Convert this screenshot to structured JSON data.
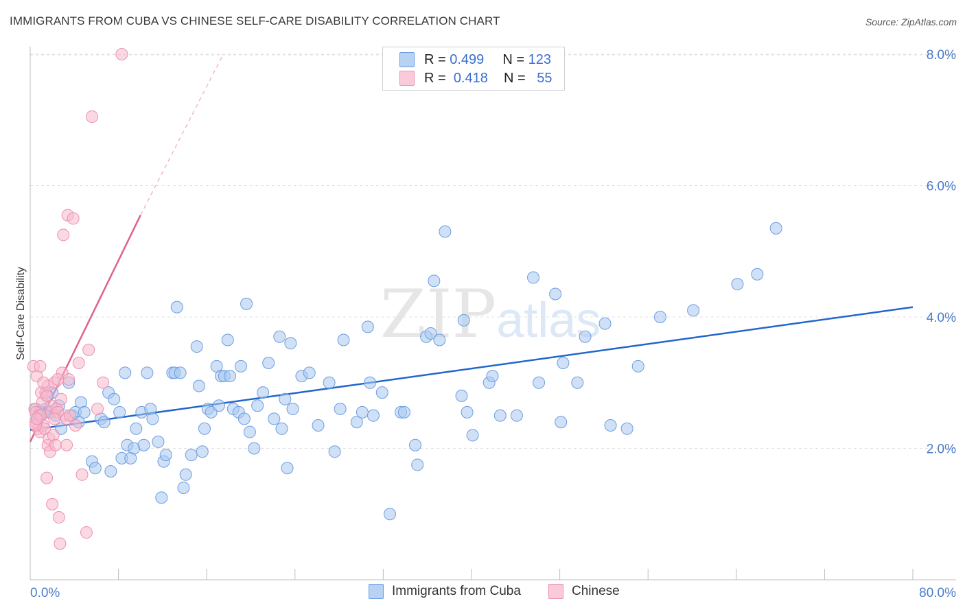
{
  "title": "IMMIGRANTS FROM CUBA VS CHINESE SELF-CARE DISABILITY CORRELATION CHART",
  "source": "Source: ZipAtlas.com",
  "watermark": {
    "zip": "ZIP",
    "atlas": "atlas"
  },
  "legend": {
    "rows": [
      {
        "r_label": "R =",
        "r_value": "0.499",
        "n_label": "N =",
        "n_value": "123"
      },
      {
        "r_label": "R =",
        "r_value": "0.418",
        "n_label": "N =",
        "n_value": "55"
      }
    ]
  },
  "colors": {
    "cuba_fill": "#a9c8f0",
    "cuba_stroke": "#6a9ee0",
    "cuba_line": "#2266cc",
    "chinese_fill": "#f7b9cc",
    "chinese_stroke": "#ee8fb0",
    "chinese_line": "#e0608e",
    "grid": "#e0e0e0",
    "tick_text": "#4a7cc9"
  },
  "chart_data": {
    "type": "scatter",
    "title": "IMMIGRANTS FROM CUBA VS CHINESE SELF-CARE DISABILITY CORRELATION CHART",
    "xlabel": "",
    "ylabel": "Self-Care Disability",
    "xlim": [
      0,
      80
    ],
    "ylim": [
      0,
      8.3
    ],
    "x_tick_labels": [
      "0.0%",
      "80.0%"
    ],
    "y_tick_labels": [
      "2.0%",
      "4.0%",
      "6.0%",
      "8.0%"
    ],
    "y_ticks": [
      2,
      4,
      6,
      8
    ],
    "grid": true,
    "legend_position": "top-center",
    "series": [
      {
        "name": "Immigrants from Cuba",
        "stats": {
          "R": 0.499,
          "N": 123
        },
        "trend": {
          "x": [
            0,
            80
          ],
          "y": [
            2.28,
            4.15
          ]
        },
        "points": [
          [
            0.5,
            2.6
          ],
          [
            0.7,
            2.45
          ],
          [
            0.9,
            2.55
          ],
          [
            1.0,
            2.5
          ],
          [
            1.2,
            2.55
          ],
          [
            1.4,
            2.6
          ],
          [
            1.6,
            2.8
          ],
          [
            1.7,
            2.55
          ],
          [
            2.0,
            2.85
          ],
          [
            2.3,
            2.5
          ],
          [
            2.6,
            2.65
          ],
          [
            2.8,
            2.3
          ],
          [
            3.5,
            3.0
          ],
          [
            3.8,
            2.5
          ],
          [
            4.1,
            2.55
          ],
          [
            4.4,
            2.4
          ],
          [
            4.6,
            2.7
          ],
          [
            4.9,
            2.55
          ],
          [
            5.6,
            1.8
          ],
          [
            5.9,
            1.7
          ],
          [
            6.4,
            2.45
          ],
          [
            6.7,
            2.4
          ],
          [
            7.1,
            2.85
          ],
          [
            7.3,
            1.65
          ],
          [
            7.6,
            2.75
          ],
          [
            8.1,
            2.55
          ],
          [
            8.3,
            1.85
          ],
          [
            8.6,
            3.15
          ],
          [
            8.8,
            2.05
          ],
          [
            9.1,
            1.85
          ],
          [
            9.4,
            2.0
          ],
          [
            9.6,
            2.3
          ],
          [
            10.1,
            2.55
          ],
          [
            10.3,
            2.05
          ],
          [
            10.6,
            3.15
          ],
          [
            10.9,
            2.6
          ],
          [
            11.1,
            2.45
          ],
          [
            11.6,
            2.1
          ],
          [
            11.9,
            1.25
          ],
          [
            12.1,
            1.8
          ],
          [
            12.3,
            1.9
          ],
          [
            12.9,
            3.15
          ],
          [
            13.1,
            3.15
          ],
          [
            13.3,
            4.15
          ],
          [
            13.6,
            3.15
          ],
          [
            13.9,
            1.4
          ],
          [
            14.1,
            1.6
          ],
          [
            14.6,
            1.9
          ],
          [
            15.1,
            3.55
          ],
          [
            15.3,
            2.95
          ],
          [
            15.6,
            1.95
          ],
          [
            15.8,
            2.3
          ],
          [
            16.1,
            2.6
          ],
          [
            16.4,
            2.55
          ],
          [
            16.9,
            3.25
          ],
          [
            17.1,
            2.65
          ],
          [
            17.3,
            3.1
          ],
          [
            17.6,
            3.1
          ],
          [
            17.9,
            3.65
          ],
          [
            18.1,
            3.1
          ],
          [
            18.4,
            2.6
          ],
          [
            18.9,
            2.55
          ],
          [
            19.1,
            3.25
          ],
          [
            19.4,
            2.45
          ],
          [
            19.6,
            4.2
          ],
          [
            19.9,
            2.25
          ],
          [
            20.3,
            2.0
          ],
          [
            20.6,
            2.65
          ],
          [
            21.1,
            2.85
          ],
          [
            21.6,
            3.3
          ],
          [
            22.1,
            2.45
          ],
          [
            22.6,
            3.7
          ],
          [
            22.8,
            2.3
          ],
          [
            23.1,
            2.75
          ],
          [
            23.3,
            1.7
          ],
          [
            23.6,
            3.6
          ],
          [
            23.8,
            2.6
          ],
          [
            24.6,
            3.1
          ],
          [
            25.3,
            3.15
          ],
          [
            26.1,
            2.35
          ],
          [
            27.1,
            3.0
          ],
          [
            27.6,
            1.95
          ],
          [
            28.1,
            2.6
          ],
          [
            28.4,
            3.65
          ],
          [
            29.6,
            2.4
          ],
          [
            30.1,
            2.55
          ],
          [
            30.6,
            3.85
          ],
          [
            30.8,
            3.0
          ],
          [
            31.1,
            2.5
          ],
          [
            31.9,
            2.85
          ],
          [
            32.6,
            1.0
          ],
          [
            33.6,
            2.55
          ],
          [
            33.9,
            2.55
          ],
          [
            34.9,
            2.05
          ],
          [
            35.1,
            1.75
          ],
          [
            35.9,
            3.7
          ],
          [
            36.3,
            3.75
          ],
          [
            36.6,
            4.55
          ],
          [
            37.1,
            3.65
          ],
          [
            37.6,
            5.3
          ],
          [
            39.1,
            2.8
          ],
          [
            39.3,
            3.95
          ],
          [
            39.6,
            2.55
          ],
          [
            40.1,
            2.2
          ],
          [
            41.6,
            3.0
          ],
          [
            41.9,
            3.1
          ],
          [
            42.6,
            2.5
          ],
          [
            44.1,
            2.5
          ],
          [
            45.6,
            4.6
          ],
          [
            46.1,
            3.0
          ],
          [
            47.6,
            4.35
          ],
          [
            48.1,
            2.4
          ],
          [
            48.3,
            3.3
          ],
          [
            49.6,
            3.0
          ],
          [
            50.3,
            3.7
          ],
          [
            52.1,
            3.9
          ],
          [
            52.6,
            2.35
          ],
          [
            54.1,
            2.3
          ],
          [
            55.1,
            3.25
          ],
          [
            57.1,
            4.0
          ],
          [
            60.1,
            4.1
          ],
          [
            64.1,
            4.5
          ],
          [
            65.9,
            4.65
          ],
          [
            67.6,
            5.35
          ]
        ]
      },
      {
        "name": "Chinese",
        "stats": {
          "R": 0.418,
          "N": 55
        },
        "trend": {
          "x": [
            0,
            10
          ],
          "y": [
            2.1,
            5.55
          ]
        },
        "trend_dashed": {
          "x": [
            10,
            17.5
          ],
          "y": [
            5.55,
            8.0
          ]
        },
        "points": [
          [
            0.3,
            3.25
          ],
          [
            0.4,
            2.6
          ],
          [
            0.5,
            2.4
          ],
          [
            0.5,
            2.55
          ],
          [
            0.6,
            3.1
          ],
          [
            0.7,
            2.3
          ],
          [
            0.8,
            2.5
          ],
          [
            0.9,
            2.25
          ],
          [
            1.0,
            2.85
          ],
          [
            1.0,
            2.5
          ],
          [
            1.1,
            2.7
          ],
          [
            1.2,
            2.35
          ],
          [
            1.3,
            2.3
          ],
          [
            1.4,
            2.85
          ],
          [
            1.5,
            1.55
          ],
          [
            1.6,
            2.05
          ],
          [
            1.6,
            2.95
          ],
          [
            1.7,
            2.15
          ],
          [
            1.8,
            1.95
          ],
          [
            1.9,
            2.55
          ],
          [
            1.9,
            2.65
          ],
          [
            2.0,
            1.15
          ],
          [
            2.1,
            2.2
          ],
          [
            2.2,
            3.0
          ],
          [
            2.3,
            2.05
          ],
          [
            2.4,
            2.6
          ],
          [
            2.5,
            2.55
          ],
          [
            2.6,
            0.95
          ],
          [
            2.7,
            0.55
          ],
          [
            2.8,
            2.75
          ],
          [
            2.9,
            3.15
          ],
          [
            3.0,
            5.25
          ],
          [
            3.1,
            2.5
          ],
          [
            3.3,
            2.05
          ],
          [
            3.3,
            2.45
          ],
          [
            3.4,
            5.55
          ],
          [
            3.5,
            3.05
          ],
          [
            3.6,
            2.5
          ],
          [
            3.9,
            5.5
          ],
          [
            4.1,
            2.35
          ],
          [
            4.4,
            3.3
          ],
          [
            4.7,
            1.6
          ],
          [
            5.1,
            0.72
          ],
          [
            5.3,
            3.5
          ],
          [
            5.6,
            7.05
          ],
          [
            6.1,
            2.6
          ],
          [
            6.6,
            3.0
          ],
          [
            8.3,
            8.0
          ],
          [
            0.5,
            2.35
          ],
          [
            0.6,
            2.45
          ],
          [
            0.9,
            3.25
          ],
          [
            1.2,
            3.0
          ],
          [
            1.5,
            2.8
          ],
          [
            2.2,
            2.45
          ],
          [
            2.5,
            3.05
          ]
        ]
      }
    ]
  },
  "bottom_legend": [
    {
      "label": "Immigrants from Cuba"
    },
    {
      "label": "Chinese"
    }
  ],
  "axis": {
    "x_min_label": "0.0%",
    "x_max_label": "80.0%",
    "y_title": "Self-Care Disability"
  }
}
